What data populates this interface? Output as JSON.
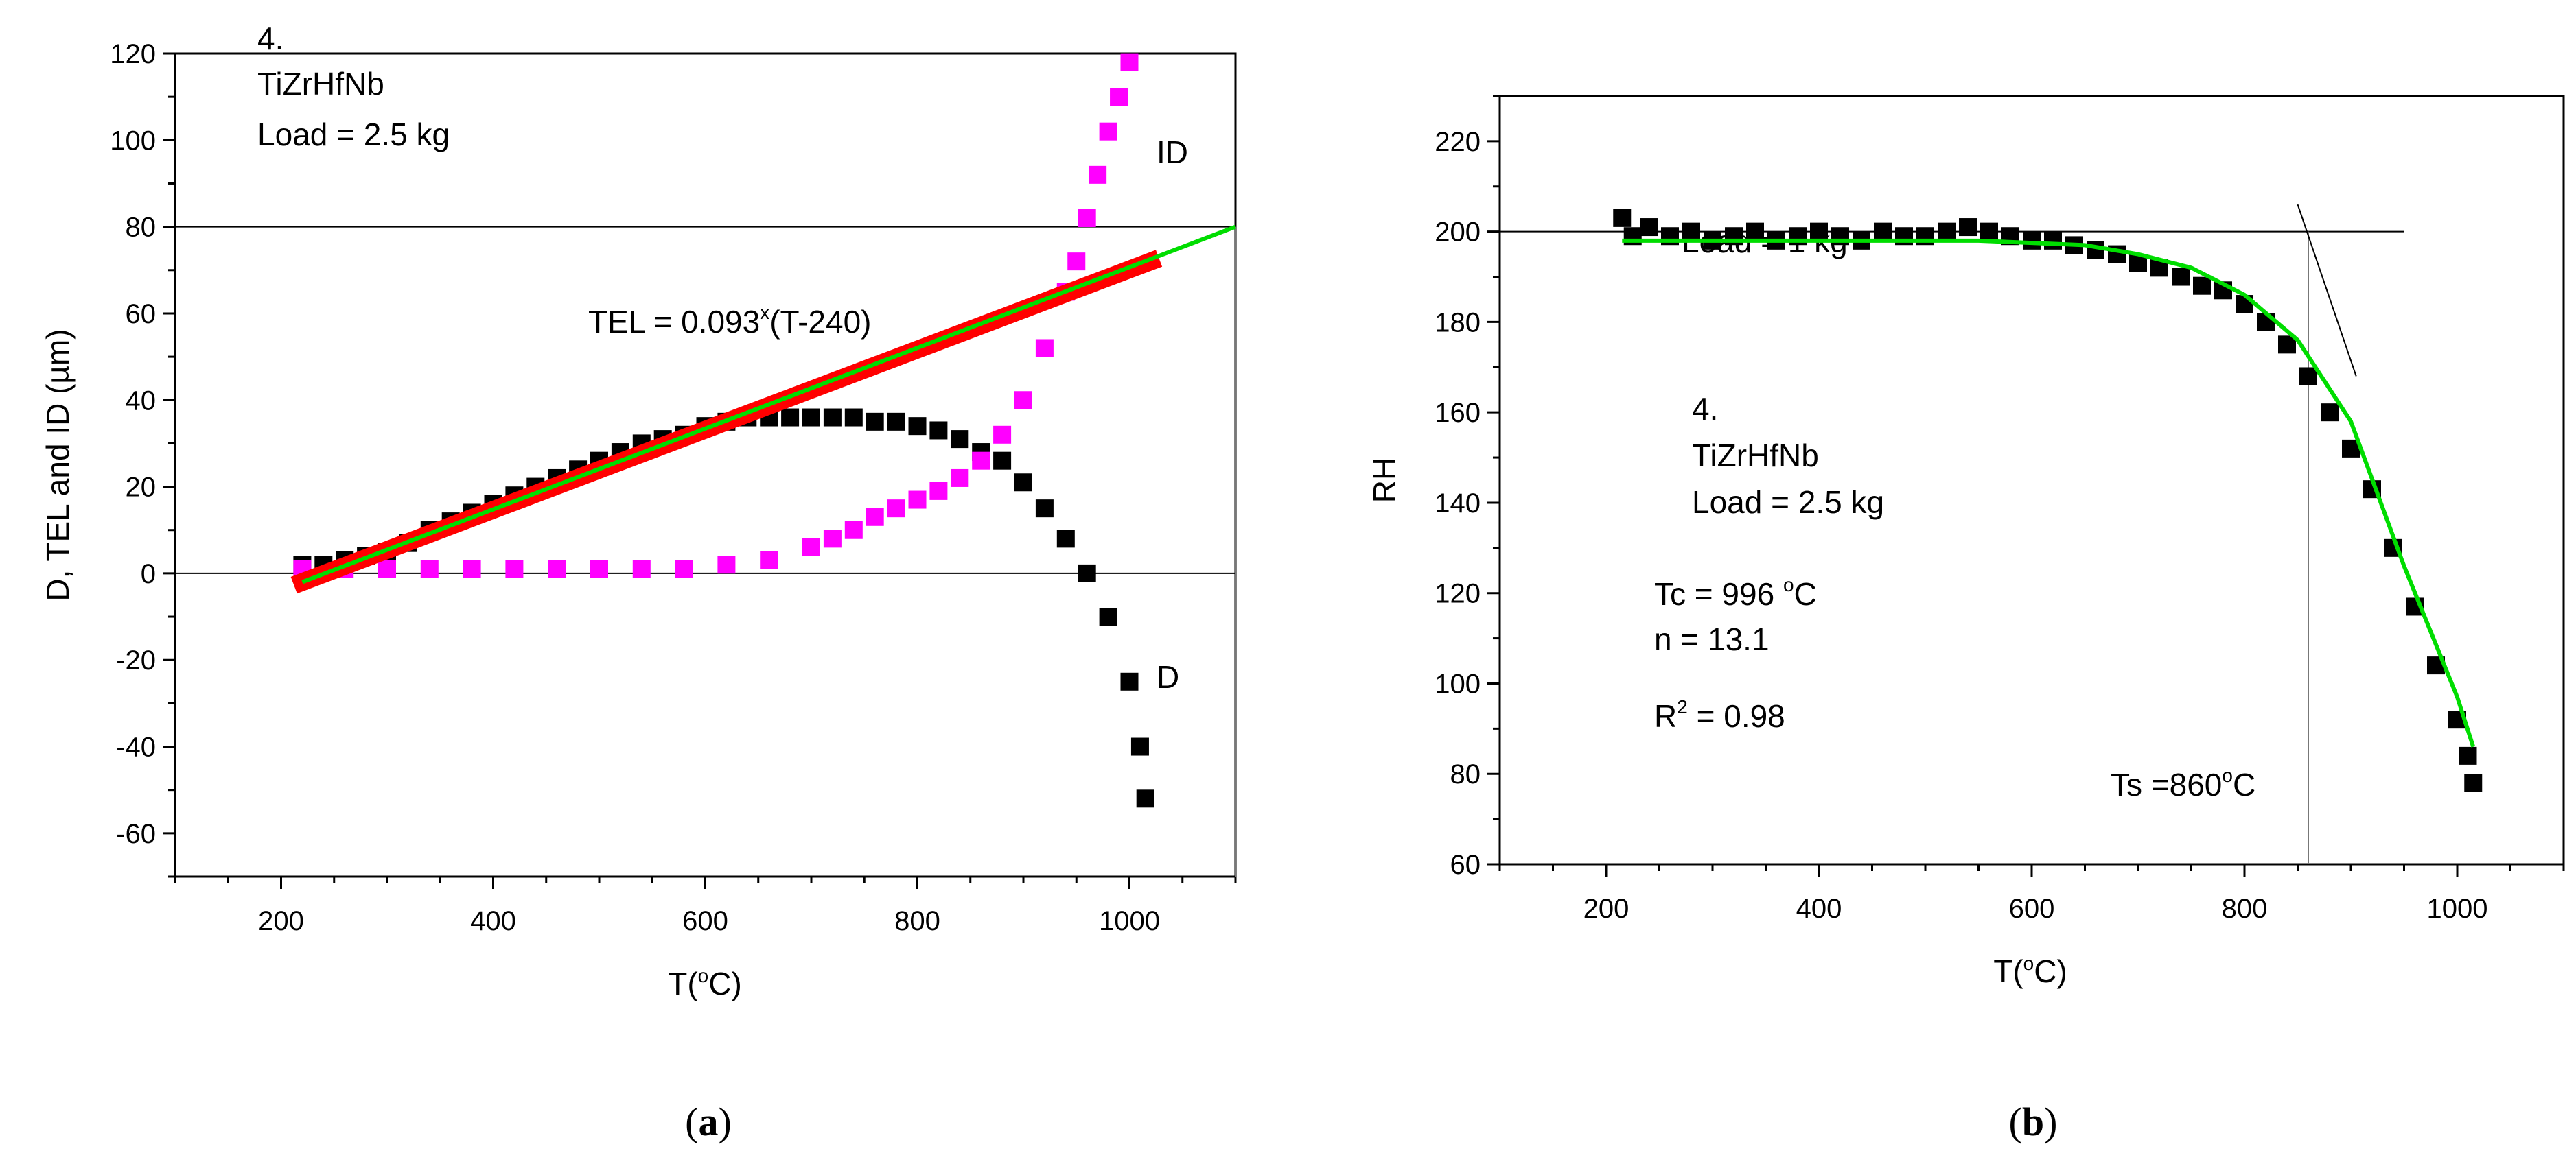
{
  "chart_data": [
    {
      "type": "scatter",
      "panel": "(a)",
      "panel_open": "(",
      "panel_letter": "a",
      "panel_close": ")",
      "xlabel_main": "T(",
      "xlabel_sup": "o",
      "xlabel_tail": "C)",
      "ylabel": "D, TEL and ID (µm)",
      "xlim": [
        100,
        1100
      ],
      "ylim": [
        -70,
        120
      ],
      "xticks": [
        200,
        400,
        600,
        800,
        1000
      ],
      "yticks": [
        -60,
        -40,
        -20,
        0,
        20,
        40,
        60,
        80,
        100,
        120
      ],
      "annotation_lines": [
        "4.",
        "TiZrHfNb",
        "Load = 2.5 kg"
      ],
      "fit_label_main": "TEL = 0.093",
      "fit_label_sup": "x",
      "fit_label_tail": "(T-240)",
      "series_label_id": "ID",
      "series_label_d": "D",
      "reference_lines": {
        "y": [
          0,
          80
        ],
        "x": [
          1100
        ]
      },
      "series": [
        {
          "name": "D",
          "color": "#000000",
          "points": [
            [
              220,
              2
            ],
            [
              240,
              2
            ],
            [
              260,
              3
            ],
            [
              280,
              4
            ],
            [
              300,
              5
            ],
            [
              320,
              7
            ],
            [
              340,
              10
            ],
            [
              360,
              12
            ],
            [
              380,
              14
            ],
            [
              400,
              16
            ],
            [
              420,
              18
            ],
            [
              440,
              20
            ],
            [
              460,
              22
            ],
            [
              480,
              24
            ],
            [
              500,
              26
            ],
            [
              520,
              28
            ],
            [
              540,
              30
            ],
            [
              560,
              31
            ],
            [
              580,
              32
            ],
            [
              600,
              34
            ],
            [
              620,
              35
            ],
            [
              640,
              36
            ],
            [
              660,
              36
            ],
            [
              680,
              36
            ],
            [
              700,
              36
            ],
            [
              720,
              36
            ],
            [
              740,
              36
            ],
            [
              760,
              35
            ],
            [
              780,
              35
            ],
            [
              800,
              34
            ],
            [
              820,
              33
            ],
            [
              840,
              31
            ],
            [
              860,
              28
            ],
            [
              880,
              26
            ],
            [
              900,
              21
            ],
            [
              920,
              15
            ],
            [
              940,
              8
            ],
            [
              960,
              0
            ],
            [
              980,
              -10
            ],
            [
              1000,
              -25
            ],
            [
              1010,
              -40
            ],
            [
              1015,
              -52
            ]
          ]
        },
        {
          "name": "ID",
          "color": "#ff00ff",
          "points": [
            [
              220,
              1
            ],
            [
              260,
              1
            ],
            [
              300,
              1
            ],
            [
              340,
              1
            ],
            [
              380,
              1
            ],
            [
              420,
              1
            ],
            [
              460,
              1
            ],
            [
              500,
              1
            ],
            [
              540,
              1
            ],
            [
              580,
              1
            ],
            [
              620,
              2
            ],
            [
              660,
              3
            ],
            [
              700,
              6
            ],
            [
              720,
              8
            ],
            [
              740,
              10
            ],
            [
              760,
              13
            ],
            [
              780,
              15
            ],
            [
              800,
              17
            ],
            [
              820,
              19
            ],
            [
              840,
              22
            ],
            [
              860,
              26
            ],
            [
              880,
              32
            ],
            [
              900,
              40
            ],
            [
              920,
              52
            ],
            [
              940,
              65
            ],
            [
              950,
              72
            ],
            [
              960,
              82
            ],
            [
              970,
              92
            ],
            [
              980,
              102
            ],
            [
              990,
              110
            ],
            [
              1000,
              118
            ]
          ]
        },
        {
          "name": "TEL",
          "color": "#ff0000",
          "points": [
            [
              220,
              -2
            ],
            [
              1020,
              72
            ]
          ]
        }
      ],
      "fit_line": {
        "name": "TEL fit",
        "color": "#00dd00",
        "points": [
          [
            220,
            -2
          ],
          [
            1100,
            80
          ]
        ]
      }
    },
    {
      "type": "scatter",
      "panel": "(b)",
      "panel_open": "(",
      "panel_letter": "b",
      "panel_close": ")",
      "xlabel_main": "T(",
      "xlabel_sup": "o",
      "xlabel_tail": "C)",
      "ylabel": "RH",
      "xlim": [
        100,
        1100
      ],
      "ylim": [
        60,
        230
      ],
      "xticks": [
        200,
        400,
        600,
        800,
        1000
      ],
      "yticks": [
        60,
        80,
        100,
        120,
        140,
        160,
        180,
        200,
        220
      ],
      "annotation_lines": [
        "4.",
        "TiZrHfNb",
        "Load = 2.5 kg"
      ],
      "tc_main": "Tc = 996 ",
      "tc_sup": "o",
      "tc_tail": "C",
      "n_text": "n = 13.1",
      "r2_main": "R",
      "r2_sup": "2",
      "r2_tail": " = 0.98",
      "ts_main": "Ts =860",
      "ts_sup": "o",
      "ts_tail": "C",
      "overlap_text": "Load = 1 kg",
      "reference_lines": {
        "y": [
          200
        ],
        "x": [
          860
        ]
      },
      "series": [
        {
          "name": "RH",
          "color": "#000000",
          "points": [
            [
              215,
              203
            ],
            [
              225,
              199
            ],
            [
              240,
              201
            ],
            [
              260,
              199
            ],
            [
              280,
              200
            ],
            [
              300,
              198
            ],
            [
              320,
              199
            ],
            [
              340,
              200
            ],
            [
              360,
              198
            ],
            [
              380,
              199
            ],
            [
              400,
              200
            ],
            [
              420,
              199
            ],
            [
              440,
              198
            ],
            [
              460,
              200
            ],
            [
              480,
              199
            ],
            [
              500,
              199
            ],
            [
              520,
              200
            ],
            [
              540,
              201
            ],
            [
              560,
              200
            ],
            [
              580,
              199
            ],
            [
              600,
              198
            ],
            [
              620,
              198
            ],
            [
              640,
              197
            ],
            [
              660,
              196
            ],
            [
              680,
              195
            ],
            [
              700,
              193
            ],
            [
              720,
              192
            ],
            [
              740,
              190
            ],
            [
              760,
              188
            ],
            [
              780,
              187
            ],
            [
              800,
              184
            ],
            [
              820,
              180
            ],
            [
              840,
              175
            ],
            [
              860,
              168
            ],
            [
              880,
              160
            ],
            [
              900,
              152
            ],
            [
              920,
              143
            ],
            [
              940,
              130
            ],
            [
              960,
              117
            ],
            [
              980,
              104
            ],
            [
              1000,
              92
            ],
            [
              1010,
              84
            ],
            [
              1015,
              78
            ]
          ]
        }
      ],
      "fit_line": {
        "name": "RH fit",
        "color": "#00dd00",
        "points": [
          [
            215,
            198
          ],
          [
            400,
            198
          ],
          [
            550,
            198
          ],
          [
            650,
            197
          ],
          [
            700,
            195
          ],
          [
            750,
            192
          ],
          [
            800,
            186
          ],
          [
            850,
            176
          ],
          [
            900,
            158
          ],
          [
            950,
            126
          ],
          [
            1000,
            97
          ],
          [
            1015,
            86
          ]
        ]
      }
    }
  ]
}
